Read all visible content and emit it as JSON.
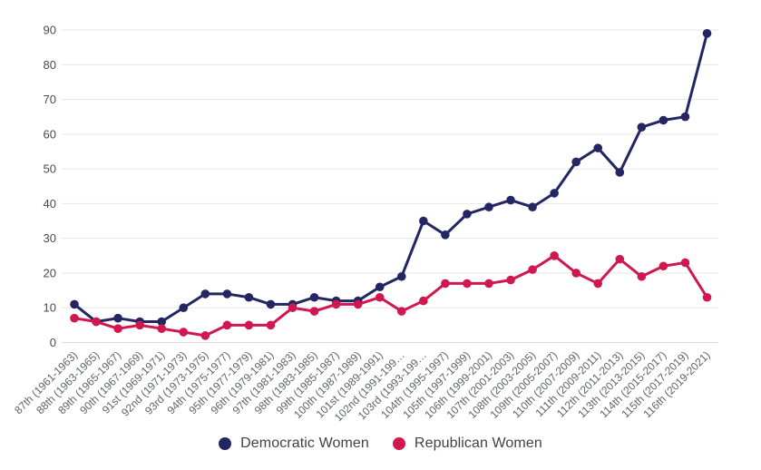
{
  "chart_data": {
    "type": "line",
    "title": "",
    "xlabel": "",
    "ylabel": "",
    "grid": true,
    "legend_position": "bottom",
    "ylim": [
      0,
      90
    ],
    "yticks": [
      0,
      10,
      20,
      30,
      40,
      50,
      60,
      70,
      80,
      90
    ],
    "categories": [
      "87th (1961-1963)",
      "88th (1963-1965)",
      "89th (1965-1967)",
      "90th (1967-1969)",
      "91st (1969-1971)",
      "92nd (1971-1973)",
      "93rd (1973-1975)",
      "94th (1975-1977)",
      "95th (1977-1979)",
      "96th (1979-1981)",
      "97th (1981-1983)",
      "98th (1983-1985)",
      "99th (1985-1987)",
      "100th (1987-1989)",
      "101st (1989-1991)",
      "102nd (1991-199…",
      "103rd (1993-199…",
      "104th (1995-1997)",
      "105th (1997-1999)",
      "106th (1999-2001)",
      "107th (2001-2003)",
      "108th (2003-2005)",
      "109th (2005-2007)",
      "110th (2007-2009)",
      "111th (2009-2011)",
      "112th (2011-2013)",
      "113th (2013-2015)",
      "114th (2015-2017)",
      "115th (2017-2019)",
      "116th (2019-2021)"
    ],
    "series": [
      {
        "name": "Democratic Women",
        "color": "#232663",
        "values": [
          11,
          6,
          7,
          6,
          6,
          10,
          14,
          14,
          13,
          11,
          11,
          13,
          12,
          12,
          16,
          19,
          35,
          31,
          37,
          39,
          41,
          39,
          43,
          52,
          56,
          49,
          62,
          64,
          65,
          89
        ]
      },
      {
        "name": "Republican Women",
        "color": "#d0184e",
        "values": [
          7,
          6,
          4,
          5,
          4,
          3,
          2,
          5,
          5,
          5,
          10,
          9,
          11,
          11,
          13,
          9,
          12,
          17,
          17,
          17,
          18,
          21,
          25,
          20,
          17,
          24,
          19,
          22,
          23,
          13
        ]
      }
    ],
    "style": {
      "grid_color": "#e6e6e6",
      "baseline_color": "#d9d9d9",
      "axis_label_color": "#5f6368",
      "ytick_label_color": "#4a4a4a"
    }
  }
}
